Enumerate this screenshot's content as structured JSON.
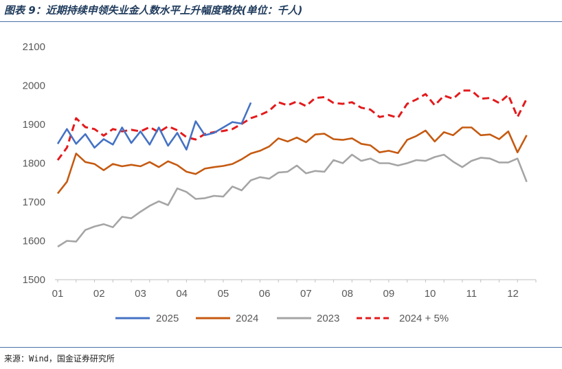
{
  "header": {
    "title": "图表 9：近期持续申领失业金人数水平上升幅度略快(单位：千人)"
  },
  "footer": {
    "source": "来源：Wind，国金证券研究所"
  },
  "chart_data": {
    "type": "line",
    "title": "图表 9：近期持续申领失业金人数水平上升幅度略快(单位：千人)",
    "xlabel": "",
    "ylabel": "",
    "ylim": [
      1500,
      2100
    ],
    "yticks": [
      1500,
      1600,
      1700,
      1800,
      1900,
      2000,
      2100
    ],
    "xlim": [
      1,
      53
    ],
    "x_tick_labels": [
      "01",
      "02",
      "03",
      "04",
      "05",
      "06",
      "07",
      "08",
      "09",
      "10",
      "11",
      "12"
    ],
    "x_tick_weeks": [
      1,
      5.5,
      10,
      14.5,
      19,
      23.5,
      28,
      32.5,
      37,
      41.5,
      46,
      50.5
    ],
    "grid": false,
    "legend_position": "bottom",
    "series": [
      {
        "name": "2025",
        "color": "#4472c4",
        "dash": false,
        "values": [
          1850,
          1888,
          1850,
          1875,
          1840,
          1862,
          1848,
          1892,
          1852,
          1882,
          1848,
          1892,
          1845,
          1878,
          1835,
          1908,
          1872,
          1878,
          1892,
          1906,
          1902,
          1956
        ]
      },
      {
        "name": "2024",
        "color": "#c55a11",
        "dash": false,
        "values": [
          1722,
          1752,
          1825,
          1803,
          1798,
          1782,
          1798,
          1792,
          1796,
          1792,
          1803,
          1790,
          1805,
          1795,
          1778,
          1772,
          1786,
          1790,
          1793,
          1798,
          1810,
          1825,
          1832,
          1843,
          1864,
          1856,
          1866,
          1854,
          1874,
          1876,
          1862,
          1860,
          1864,
          1850,
          1846,
          1828,
          1832,
          1826,
          1860,
          1870,
          1884,
          1856,
          1880,
          1872,
          1892,
          1892,
          1872,
          1874,
          1862,
          1882,
          1828,
          1872
        ]
      },
      {
        "name": "2023",
        "color": "#a5a5a5",
        "dash": false,
        "values": [
          1585,
          1600,
          1598,
          1628,
          1637,
          1643,
          1635,
          1662,
          1658,
          1675,
          1690,
          1702,
          1692,
          1735,
          1726,
          1708,
          1710,
          1716,
          1714,
          1740,
          1730,
          1756,
          1764,
          1760,
          1776,
          1778,
          1794,
          1774,
          1780,
          1778,
          1808,
          1800,
          1822,
          1806,
          1812,
          1800,
          1800,
          1794,
          1800,
          1808,
          1806,
          1816,
          1822,
          1804,
          1790,
          1806,
          1814,
          1812,
          1802,
          1802,
          1812,
          1752
        ]
      },
      {
        "name": "2024 + 5%",
        "color": "#e31a1c",
        "dash": true,
        "values": [
          1808,
          1840,
          1916,
          1893,
          1888,
          1871,
          1888,
          1882,
          1886,
          1882,
          1893,
          1880,
          1895,
          1885,
          1867,
          1861,
          1875,
          1880,
          1883,
          1888,
          1901,
          1916,
          1924,
          1935,
          1957,
          1949,
          1959,
          1947,
          1968,
          1970,
          1955,
          1953,
          1957,
          1943,
          1938,
          1919,
          1924,
          1917,
          1953,
          1964,
          1978,
          1949,
          1974,
          1966,
          1987,
          1987,
          1966,
          1968,
          1955,
          1976,
          1919,
          1966
        ]
      }
    ]
  }
}
